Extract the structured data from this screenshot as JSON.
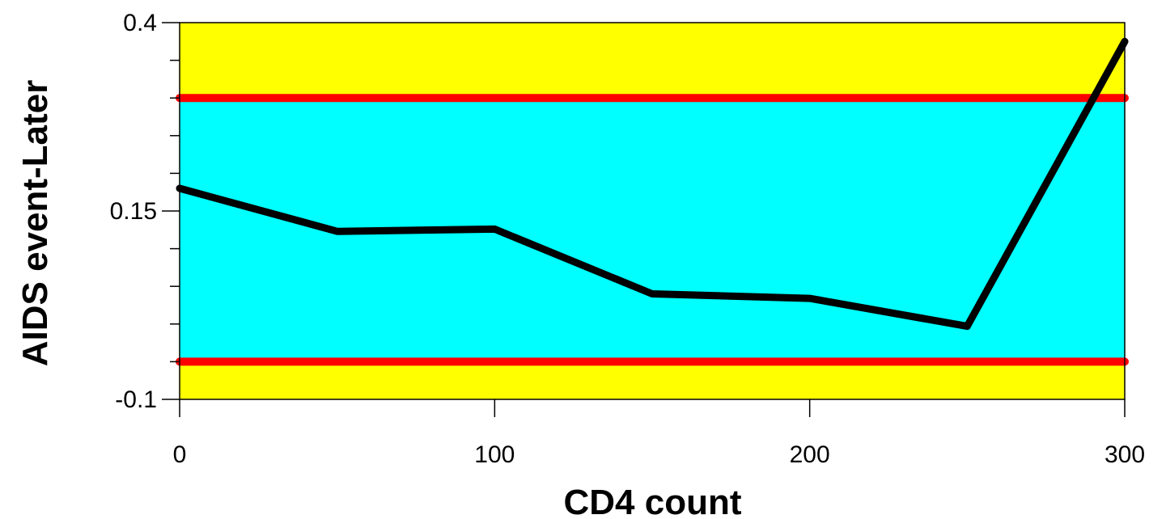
{
  "chart_data": {
    "type": "line",
    "xlabel": "CD4 count",
    "ylabel": "AIDS event-Later",
    "xlim": [
      0,
      300
    ],
    "ylim": [
      -0.1,
      0.4
    ],
    "xticks": [
      0,
      100,
      200,
      300
    ],
    "yticks_labeled": [
      -0.1,
      0.15,
      0.4
    ],
    "yticks_minor": [
      -0.05,
      0.0,
      0.05,
      0.1,
      0.2,
      0.25,
      0.3,
      0.35
    ],
    "series": [
      {
        "x": [
          0,
          50,
          100,
          150,
          200,
          250,
          300
        ],
        "y": [
          0.18,
          0.123,
          0.126,
          0.04,
          0.034,
          -0.003,
          0.375
        ]
      }
    ],
    "reference_lines": [
      {
        "axis": "y",
        "value": 0.3
      },
      {
        "axis": "y",
        "value": -0.05
      }
    ],
    "colors": {
      "line": "#000000",
      "reference_line": "#ff0000",
      "band_inside": "#00ffff",
      "band_outside": "#ffff00"
    }
  }
}
